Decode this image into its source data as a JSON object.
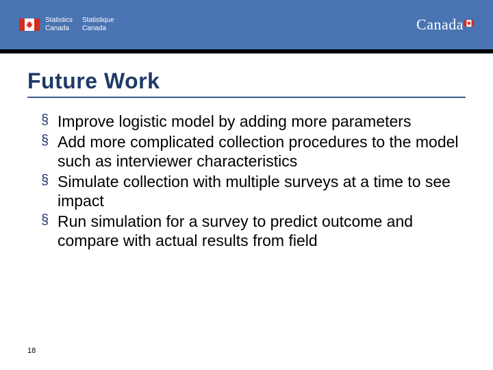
{
  "colors": {
    "header_bg": "#4a73b1",
    "header_text": "#ffffff",
    "blackbar": "#000000",
    "title_color": "#1e3a68",
    "title_underline": "#3b5a8a",
    "bullet_marker": "#1e3a68",
    "body_text": "#000000",
    "flag_red": "#d52b1e",
    "flag_white": "#ffffff"
  },
  "header": {
    "org_en_line1": "Statistics",
    "org_en_line2": "Canada",
    "org_fr_line1": "Statistique",
    "org_fr_line2": "Canada",
    "wordmark": "Canada"
  },
  "slide": {
    "title": "Future Work",
    "bullets": [
      "Improve logistic model by adding more parameters",
      "Add more complicated collection procedures to the model such as interviewer characteristics",
      "Simulate collection with multiple surveys at a time to see impact",
      "Run simulation for a survey to predict outcome and compare with actual results from field"
    ],
    "page_number": "18"
  }
}
